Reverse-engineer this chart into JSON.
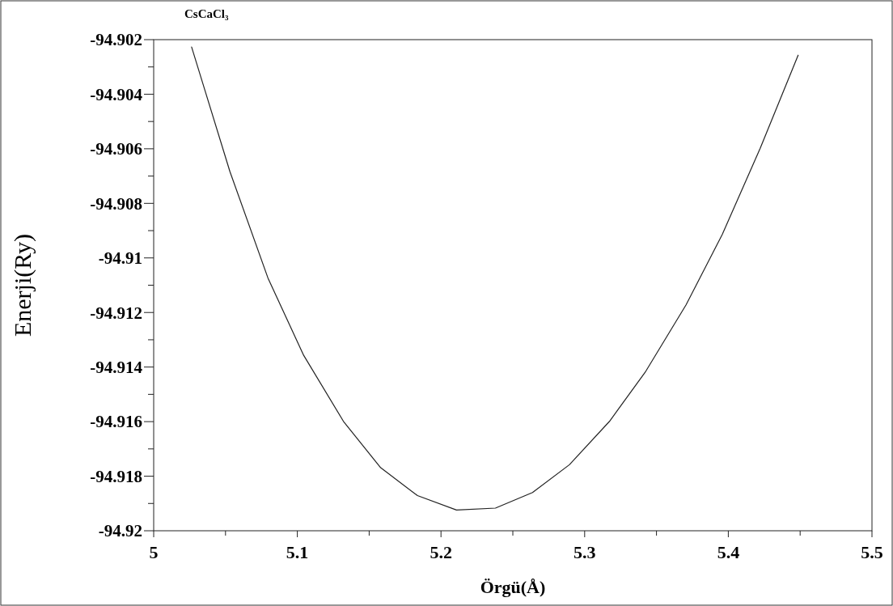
{
  "chart_data": {
    "type": "line",
    "title": "CsCaCl₃",
    "xlabel": "Örgü(Å)",
    "ylabel": "Enerji(Ry)",
    "x": [
      5.0264,
      5.0531,
      5.0795,
      5.1044,
      5.1321,
      5.158,
      5.1836,
      5.2108,
      5.2379,
      5.2637,
      5.2894,
      5.3173,
      5.3425,
      5.3706,
      5.3958,
      5.4222,
      5.4486
    ],
    "series": [
      {
        "color": "#222222",
        "values": [
          -94.90227,
          -94.90684,
          -94.91073,
          -94.91357,
          -94.91599,
          -94.91769,
          -94.91871,
          -94.91924,
          -94.91917,
          -94.9186,
          -94.91758,
          -94.91599,
          -94.91416,
          -94.91172,
          -94.90914,
          -94.90598,
          -94.90257
        ]
      }
    ],
    "xlim": [
      5,
      5.5
    ],
    "xticks": [
      5,
      {
        "value": 5.05,
        "label": null
      },
      5.1,
      {
        "value": 5.15,
        "label": null
      },
      5.2,
      {
        "value": 5.25,
        "label": null
      },
      5.3,
      {
        "value": 5.35,
        "label": null
      },
      5.4,
      {
        "value": 5.45,
        "label": null
      },
      5.5
    ],
    "ylim": [
      -94.92,
      -94.902
    ],
    "yticks": [
      -94.92,
      {
        "value": -94.919,
        "label": null
      },
      -94.918,
      {
        "value": -94.917,
        "label": null
      },
      -94.916,
      {
        "value": -94.915,
        "label": null
      },
      -94.914,
      {
        "value": -94.913,
        "label": null
      },
      -94.912,
      {
        "value": -94.911,
        "label": null
      },
      -94.91,
      {
        "value": -94.909,
        "label": null
      },
      -94.908,
      {
        "value": -94.907,
        "label": null
      },
      -94.906,
      {
        "value": -94.905,
        "label": null
      },
      -94.904,
      {
        "value": -94.903,
        "label": null
      },
      -94.902
    ],
    "grid": false,
    "marker": "none",
    "line_style": "solid"
  }
}
